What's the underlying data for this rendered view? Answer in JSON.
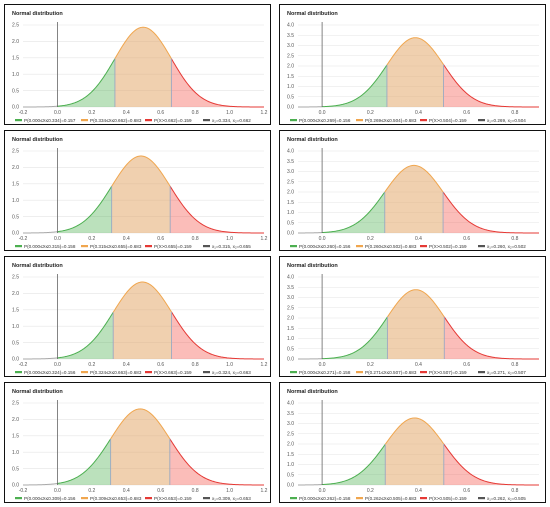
{
  "chart_data": [
    {
      "type": "area",
      "title": "Normal distribution",
      "mu": 0.498,
      "sigma": 0.164,
      "xlim": [
        -0.2,
        1.2
      ],
      "ylim": [
        0,
        2.5
      ],
      "x_ticks": [
        "-0.2",
        "0.0",
        "0.2",
        "0.4",
        "0.6",
        "0.8",
        "1.0",
        "1.2"
      ],
      "y_ticks": [
        "0.0",
        "0.5",
        "1.0",
        "1.5",
        "2.0",
        "2.5"
      ],
      "x1": 0.334,
      "x2": 0.662,
      "legend": [
        "P(0.000≤X≤0.334)=0.157",
        "P(0.334≤X≤0.662)=0.683",
        "P(X>0.662)=0.159",
        "x₁=0.334, x₂=0.662"
      ],
      "colors": [
        "#4caf50",
        "#f0a64e",
        "#e53935",
        "#555555"
      ]
    },
    {
      "type": "area",
      "title": "Normal distribution",
      "mu": 0.387,
      "sigma": 0.118,
      "xlim": [
        -0.1,
        0.9
      ],
      "ylim": [
        0,
        4.0
      ],
      "x_ticks": [
        "0.0",
        "0.2",
        "0.4",
        "0.6",
        "0.8"
      ],
      "y_ticks": [
        "0.0",
        "0.5",
        "1.0",
        "1.5",
        "2.0",
        "2.5",
        "3.0",
        "3.5",
        "4.0"
      ],
      "x1": 0.269,
      "x2": 0.504,
      "legend": [
        "P(0.000≤X≤0.269)=0.156",
        "P(0.269≤X≤0.504)=0.683",
        "P(X>0.504)=0.159",
        "x₁=0.269, x₂=0.504"
      ],
      "colors": [
        "#4caf50",
        "#f0a64e",
        "#e53935",
        "#555555"
      ]
    },
    {
      "type": "area",
      "title": "Normal distribution",
      "mu": 0.485,
      "sigma": 0.17,
      "xlim": [
        -0.2,
        1.2
      ],
      "ylim": [
        0,
        2.5
      ],
      "x_ticks": [
        "-0.2",
        "0.0",
        "0.2",
        "0.4",
        "0.6",
        "0.8",
        "1.0",
        "1.2"
      ],
      "y_ticks": [
        "0.0",
        "0.5",
        "1.0",
        "1.5",
        "2.0",
        "2.5"
      ],
      "x1": 0.315,
      "x2": 0.655,
      "legend": [
        "P(0.000≤X≤0.315)=0.158",
        "P(0.315≤X≤0.655)=0.683",
        "P(X>0.655)=0.159",
        "x₁=0.315, x₂=0.655"
      ],
      "colors": [
        "#4caf50",
        "#f0a64e",
        "#e53935",
        "#555555"
      ]
    },
    {
      "type": "area",
      "title": "Normal distribution",
      "mu": 0.381,
      "sigma": 0.121,
      "xlim": [
        -0.1,
        0.9
      ],
      "ylim": [
        0,
        4.0
      ],
      "x_ticks": [
        "0.0",
        "0.2",
        "0.4",
        "0.6",
        "0.8"
      ],
      "y_ticks": [
        "0.0",
        "0.5",
        "1.0",
        "1.5",
        "2.0",
        "2.5",
        "3.0",
        "3.5",
        "4.0"
      ],
      "x1": 0.26,
      "x2": 0.502,
      "legend": [
        "P(0.000≤X≤0.260)=0.156",
        "P(0.260≤X≤0.502)=0.683",
        "P(X>0.502)=0.159",
        "x₁=0.260, x₂=0.502"
      ],
      "colors": [
        "#4caf50",
        "#f0a64e",
        "#e53935",
        "#555555"
      ]
    },
    {
      "type": "area",
      "title": "Normal distribution",
      "mu": 0.494,
      "sigma": 0.17,
      "xlim": [
        -0.2,
        1.2
      ],
      "ylim": [
        0,
        2.5
      ],
      "x_ticks": [
        "-0.2",
        "0.0",
        "0.2",
        "0.4",
        "0.6",
        "0.8",
        "1.0",
        "1.2"
      ],
      "y_ticks": [
        "0.0",
        "0.5",
        "1.0",
        "1.5",
        "2.0",
        "2.5"
      ],
      "x1": 0.324,
      "x2": 0.663,
      "legend": [
        "P(0.000≤X≤0.324)=0.156",
        "P(0.324≤X≤0.663)=0.683",
        "P(X>0.663)=0.159",
        "x₁=0.324, x₂=0.663"
      ],
      "colors": [
        "#4caf50",
        "#f0a64e",
        "#e53935",
        "#555555"
      ]
    },
    {
      "type": "area",
      "title": "Normal distribution",
      "mu": 0.389,
      "sigma": 0.118,
      "xlim": [
        -0.1,
        0.9
      ],
      "ylim": [
        0,
        4.0
      ],
      "x_ticks": [
        "0.0",
        "0.2",
        "0.4",
        "0.6",
        "0.8"
      ],
      "y_ticks": [
        "0.0",
        "0.5",
        "1.0",
        "1.5",
        "2.0",
        "2.5",
        "3.0",
        "3.5",
        "4.0"
      ],
      "x1": 0.271,
      "x2": 0.507,
      "legend": [
        "P(0.000≤X≤0.271)=0.158",
        "P(0.271≤X≤0.507)=0.683",
        "P(X>0.507)=0.159",
        "x₁=0.271, x₂=0.507"
      ],
      "colors": [
        "#4caf50",
        "#f0a64e",
        "#e53935",
        "#555555"
      ]
    },
    {
      "type": "area",
      "title": "Normal distribution",
      "mu": 0.481,
      "sigma": 0.172,
      "xlim": [
        -0.2,
        1.2
      ],
      "ylim": [
        0,
        2.5
      ],
      "x_ticks": [
        "-0.2",
        "0.0",
        "0.2",
        "0.4",
        "0.6",
        "0.8",
        "1.0",
        "1.2"
      ],
      "y_ticks": [
        "0.0",
        "0.5",
        "1.0",
        "1.5",
        "2.0",
        "2.5"
      ],
      "x1": 0.309,
      "x2": 0.653,
      "legend": [
        "P(0.000≤X≤0.309)=0.156",
        "P(0.309≤X≤0.653)=0.683",
        "P(X>0.653)=0.159",
        "x₁=0.309, x₂=0.653"
      ],
      "colors": [
        "#4caf50",
        "#f0a64e",
        "#e53935",
        "#555555"
      ]
    },
    {
      "type": "area",
      "title": "Normal distribution",
      "mu": 0.384,
      "sigma": 0.122,
      "xlim": [
        -0.1,
        0.9
      ],
      "ylim": [
        0,
        4.0
      ],
      "x_ticks": [
        "0.0",
        "0.2",
        "0.4",
        "0.6",
        "0.8"
      ],
      "y_ticks": [
        "0.0",
        "0.5",
        "1.0",
        "1.5",
        "2.0",
        "2.5",
        "3.0",
        "3.5",
        "4.0"
      ],
      "x1": 0.262,
      "x2": 0.505,
      "legend": [
        "P(0.000≤X≤0.262)=0.158",
        "P(0.262≤X≤0.505)=0.683",
        "P(X>0.505)=0.159",
        "x₁=0.262, x₂=0.505"
      ],
      "colors": [
        "#4caf50",
        "#f0a64e",
        "#e53935",
        "#555555"
      ]
    }
  ]
}
